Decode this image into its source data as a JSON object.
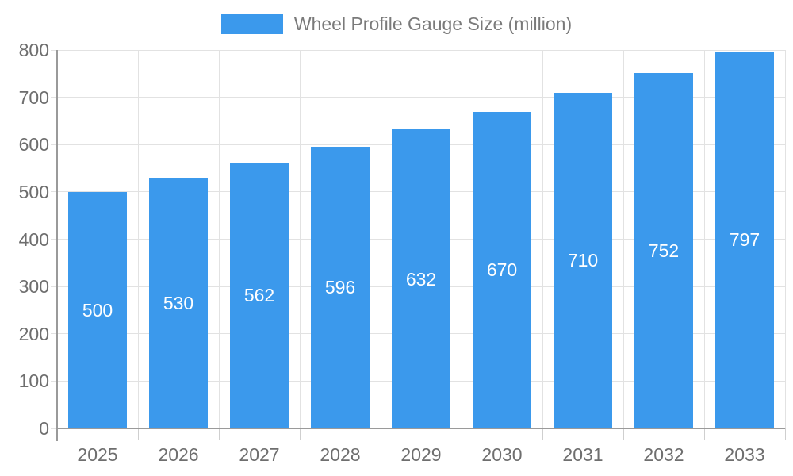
{
  "legend": {
    "label": "Wheel Profile Gauge Size (million)"
  },
  "chart_data": {
    "type": "bar",
    "title": "",
    "xlabel": "",
    "ylabel": "",
    "categories": [
      "2025",
      "2026",
      "2027",
      "2028",
      "2029",
      "2030",
      "2031",
      "2032",
      "2033"
    ],
    "series": [
      {
        "name": "Wheel Profile Gauge Size (million)",
        "values": [
          500,
          530,
          562,
          596,
          632,
          670,
          710,
          752,
          797
        ]
      }
    ],
    "value_labels_shown": true,
    "ylim": [
      0,
      800
    ],
    "ytick_step": 100,
    "yticks": [
      0,
      100,
      200,
      300,
      400,
      500,
      600,
      700,
      800
    ],
    "grid": true,
    "legend_position": "top",
    "colors": {
      "bar": "#3B99EC",
      "grid": "#E2E2E2",
      "axis_line": "#9A9A9A",
      "outer_tick": "#CFCFCF",
      "axis_text": "#6E6E6E",
      "legend_text": "#7A7A7A",
      "value_text": "#FFFFFF"
    }
  }
}
